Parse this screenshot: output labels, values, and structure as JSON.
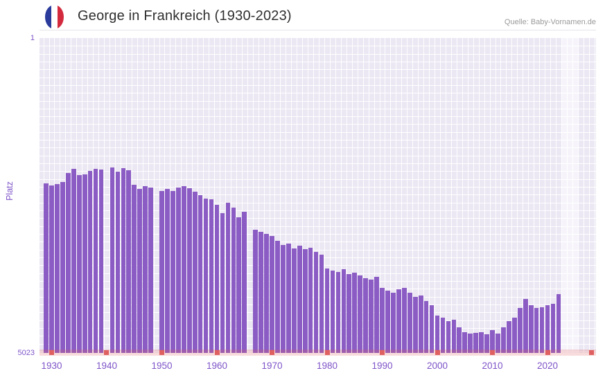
{
  "header": {
    "title": "George in Frankreich (1930-2023)",
    "source": "Quelle: Baby-Vornamen.de",
    "flag_colors": {
      "blue": "#2a3b9c",
      "white": "#ffffff",
      "red": "#d32a3e"
    }
  },
  "chart_data": {
    "type": "bar",
    "title": "George in Frankreich (1930-2023)",
    "ylabel": "Platz",
    "xlabel": "",
    "y_inverted": true,
    "ylim": [
      1,
      5023
    ],
    "y_ticks": [
      "1",
      "5023"
    ],
    "x_ticks": [
      1930,
      1940,
      1950,
      1960,
      1970,
      1980,
      1990,
      2000,
      2010,
      2020
    ],
    "xlim": [
      1927.8,
      2028.8
    ],
    "grid": true,
    "grid_step_y": 125,
    "bar_halfwidth": 0.42,
    "missing_years": [
      1940,
      1949,
      1966
    ],
    "highlight_band": {
      "from": 2022.6,
      "to": 2025.6
    },
    "axis_marker_years": [
      1930,
      1940,
      1950,
      1960,
      1970,
      1980,
      1990,
      2000,
      2010,
      2020,
      2028
    ],
    "colors": {
      "bar": "#8b5cc4",
      "plot_bg": "#ebe7f3",
      "grid": "#ffffff",
      "tick": "#7d53c8",
      "marker": "#df6060",
      "strip": "rgba(223,96,96,0.22)",
      "band": "rgba(255,255,255,0.55)",
      "title": "#2e2e2e",
      "source": "#9a9a9a"
    },
    "points": [
      [
        1929,
        2320
      ],
      [
        1930,
        2350
      ],
      [
        1931,
        2330
      ],
      [
        1932,
        2300
      ],
      [
        1933,
        2150
      ],
      [
        1934,
        2090
      ],
      [
        1935,
        2190
      ],
      [
        1936,
        2170
      ],
      [
        1937,
        2120
      ],
      [
        1938,
        2090
      ],
      [
        1939,
        2100
      ],
      [
        1941,
        2070
      ],
      [
        1942,
        2130
      ],
      [
        1943,
        2080
      ],
      [
        1944,
        2110
      ],
      [
        1945,
        2340
      ],
      [
        1946,
        2410
      ],
      [
        1947,
        2360
      ],
      [
        1948,
        2390
      ],
      [
        1950,
        2440
      ],
      [
        1951,
        2410
      ],
      [
        1952,
        2440
      ],
      [
        1953,
        2390
      ],
      [
        1954,
        2360
      ],
      [
        1955,
        2400
      ],
      [
        1956,
        2450
      ],
      [
        1957,
        2510
      ],
      [
        1958,
        2560
      ],
      [
        1959,
        2570
      ],
      [
        1960,
        2660
      ],
      [
        1961,
        2790
      ],
      [
        1962,
        2630
      ],
      [
        1963,
        2710
      ],
      [
        1964,
        2860
      ],
      [
        1965,
        2770
      ],
      [
        1967,
        3060
      ],
      [
        1968,
        3090
      ],
      [
        1969,
        3130
      ],
      [
        1970,
        3160
      ],
      [
        1971,
        3230
      ],
      [
        1972,
        3300
      ],
      [
        1973,
        3280
      ],
      [
        1974,
        3360
      ],
      [
        1975,
        3310
      ],
      [
        1976,
        3370
      ],
      [
        1977,
        3350
      ],
      [
        1978,
        3410
      ],
      [
        1979,
        3460
      ],
      [
        1980,
        3680
      ],
      [
        1981,
        3710
      ],
      [
        1982,
        3730
      ],
      [
        1983,
        3690
      ],
      [
        1984,
        3760
      ],
      [
        1985,
        3740
      ],
      [
        1986,
        3790
      ],
      [
        1987,
        3830
      ],
      [
        1988,
        3850
      ],
      [
        1989,
        3810
      ],
      [
        1990,
        3990
      ],
      [
        1991,
        4030
      ],
      [
        1992,
        4060
      ],
      [
        1993,
        4010
      ],
      [
        1994,
        3990
      ],
      [
        1995,
        4060
      ],
      [
        1996,
        4130
      ],
      [
        1997,
        4110
      ],
      [
        1998,
        4190
      ],
      [
        1999,
        4260
      ],
      [
        2000,
        4430
      ],
      [
        2001,
        4460
      ],
      [
        2002,
        4510
      ],
      [
        2003,
        4490
      ],
      [
        2004,
        4610
      ],
      [
        2005,
        4690
      ],
      [
        2006,
        4710
      ],
      [
        2007,
        4700
      ],
      [
        2008,
        4690
      ],
      [
        2009,
        4720
      ],
      [
        2010,
        4660
      ],
      [
        2011,
        4710
      ],
      [
        2012,
        4610
      ],
      [
        2013,
        4510
      ],
      [
        2014,
        4460
      ],
      [
        2015,
        4310
      ],
      [
        2016,
        4160
      ],
      [
        2017,
        4260
      ],
      [
        2018,
        4310
      ],
      [
        2019,
        4290
      ],
      [
        2020,
        4260
      ],
      [
        2021,
        4240
      ],
      [
        2022,
        4090
      ]
    ]
  }
}
